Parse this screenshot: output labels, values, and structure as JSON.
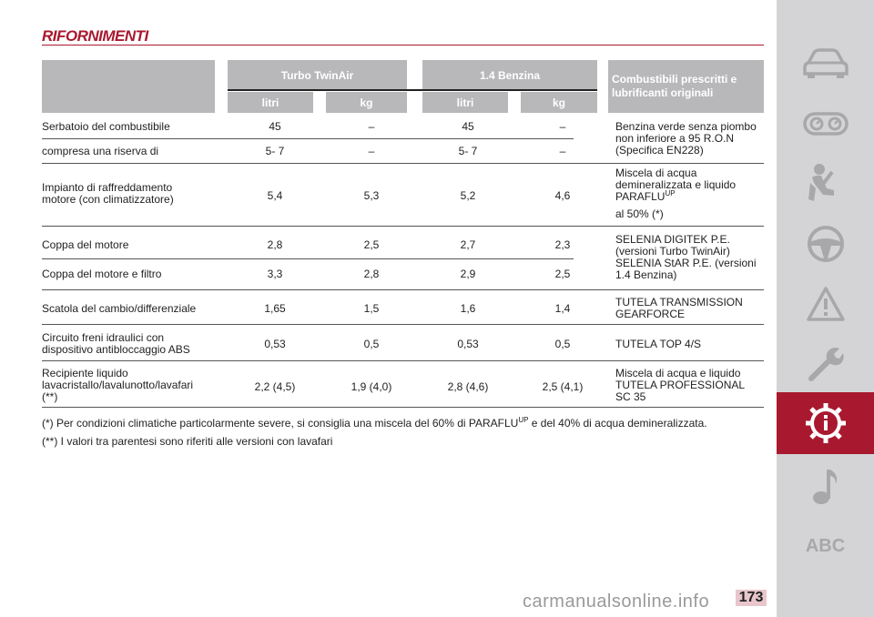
{
  "title": "RIFORNIMENTI",
  "table": {
    "header": {
      "group1": "Turbo TwinAir",
      "group2": "1.4 Benzina",
      "recommended": "Combustibili prescritti e lubrificanti originali",
      "sub": [
        "litri",
        "kg",
        "litri",
        "kg"
      ]
    },
    "rows": [
      {
        "label": "Serbatoio del combustibile",
        "values": [
          "45",
          "–",
          "45",
          "–"
        ]
      },
      {
        "label": "compresa una riserva di",
        "values": [
          "5- 7",
          "–",
          "5- 7",
          "–"
        ]
      },
      {
        "label": "Impianto di raffreddamento motore (con climatizzatore)",
        "values": [
          "5,4",
          "5,3",
          "5,2",
          "4,6"
        ]
      },
      {
        "label": "Coppa del motore",
        "values": [
          "2,8",
          "2,5",
          "2,7",
          "2,3"
        ]
      },
      {
        "label": "Coppa del motore e filtro",
        "values": [
          "3,3",
          "2,8",
          "2,9",
          "2,5"
        ]
      },
      {
        "label": "Scatola del cambio/differenziale",
        "values": [
          "1,65",
          "1,5",
          "1,6",
          "1,4"
        ]
      },
      {
        "label": "Circuito freni idraulici con dispositivo antibloccaggio ABS",
        "values": [
          "0,53",
          "0,5",
          "0,53",
          "0,5"
        ]
      },
      {
        "label": "Recipiente liquido lavacristallo/lavalunotto/lavafari (**)",
        "values": [
          "2,2 (4,5)",
          "1,9 (4,0)",
          "2,8 (4,6)",
          "2,5 (4,1)"
        ]
      }
    ],
    "fluids": {
      "fuel": "Benzina verde senza piombo non inferiore a 95 R.O.N (Specifica EN228)",
      "coolant_main": "Miscela di acqua demineralizzata e liquido PARAFLU",
      "coolant_sup": "UP",
      "coolant_tail": "al 50% (*)",
      "oil": "SELENIA DIGITEK P.E. (versioni Turbo TwinAir) SELENIA StAR P.E. (versioni 1.4 Benzina)",
      "gearbox": "TUTELA TRANSMISSION GEARFORCE",
      "brakes": "TUTELA TOP 4/S",
      "washer": "Miscela di acqua e liquido TUTELA PROFESSIONAL SC 35"
    }
  },
  "notes": {
    "n1_a": "(*) Per condizioni climatiche particolarmente severe, si consiglia una miscela del 60% di PARAFLU",
    "n1_sup": "UP",
    "n1_b": " e del 40% di acqua demineralizzata.",
    "n2": "(**) I valori tra parentesi sono riferiti alle versioni con lavafari"
  },
  "sidebar": {
    "items": [
      "car-icon",
      "dashboard-gauges-icon",
      "seatbelt-passenger-icon",
      "steering-wheel-icon",
      "warning-triangle-icon",
      "wrench-icon",
      "info-gear-icon",
      "music-note-icon",
      "abc-index"
    ],
    "abc_label": "ABC",
    "active_index": 6,
    "colors": {
      "active": "#a8192f",
      "icon": "#a8a8ab",
      "background": "#d4d4d6"
    }
  },
  "page_number": "173",
  "watermark": "carmanualsonline.info"
}
